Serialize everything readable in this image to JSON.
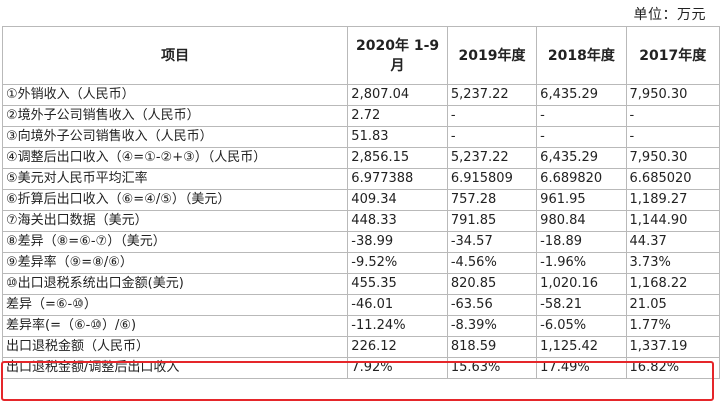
{
  "unit_label": "单位：万元",
  "table": {
    "headers": [
      "项目",
      "2020年 1-9月",
      "2019年度",
      "2018年度",
      "2017年度"
    ],
    "rows": [
      [
        "①外销收入（人民币）",
        "2,807.04",
        "5,237.22",
        "6,435.29",
        "7,950.30"
      ],
      [
        "②境外子公司销售收入（人民币）",
        "2.72",
        "-",
        "-",
        "-"
      ],
      [
        "③向境外子公司销售收入（人民币）",
        "51.83",
        "-",
        "-",
        "-"
      ],
      [
        "④调整后出口收入（④=①-②+③）（人民币）",
        "2,856.15",
        "5,237.22",
        "6,435.29",
        "7,950.30"
      ],
      [
        "⑤美元对人民币平均汇率",
        "6.977388",
        "6.915809",
        "6.689820",
        "6.685020"
      ],
      [
        "⑥折算后出口收入（⑥=④/⑤）（美元）",
        "409.34",
        "757.28",
        "961.95",
        "1,189.27"
      ],
      [
        "⑦海关出口数据（美元）",
        "448.33",
        "791.85",
        "980.84",
        "1,144.90"
      ],
      [
        "⑧差异（⑧=⑥-⑦）（美元）",
        "-38.99",
        "-34.57",
        "-18.89",
        "44.37"
      ],
      [
        "⑨差异率（⑨=⑧/⑥）",
        "-9.52%",
        "-4.56%",
        "-1.96%",
        "3.73%"
      ],
      [
        "⑩出口退税系统出口金额(美元)",
        "455.35",
        "820.85",
        "1,020.16",
        "1,168.22"
      ],
      [
        "差异（=⑥-⑩）",
        "-46.01",
        "-63.56",
        "-58.21",
        "21.05"
      ],
      [
        "差异率(=（⑥-⑩）/⑥)",
        "-11.24%",
        "-8.39%",
        "-6.05%",
        "1.77%"
      ],
      [
        "出口退税金额（人民币）",
        "226.12",
        "818.59",
        "1,125.42",
        "1,337.19"
      ],
      [
        "出口退税金额/调整后出口收入",
        "7.92%",
        "15.63%",
        "17.49%",
        "16.82%"
      ]
    ]
  },
  "highlight_color": "#e5262a"
}
